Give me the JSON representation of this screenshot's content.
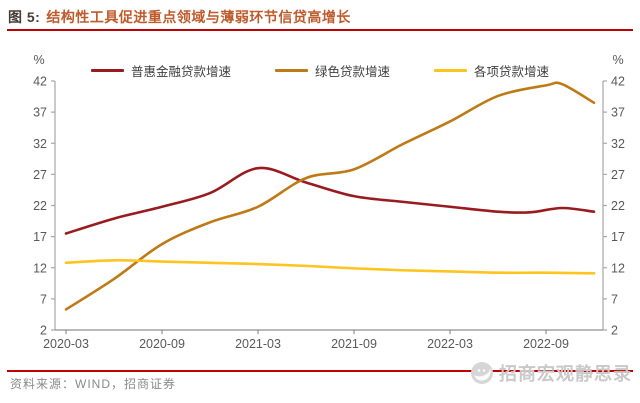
{
  "header": {
    "figure_label": "图 5:",
    "title": "结构性工具促进重点领域与薄弱环节信贷高增长"
  },
  "footer": {
    "source": "资料来源：WIND，招商证券",
    "watermark": "招商宏观静思录"
  },
  "colors": {
    "accent_rule": "#c00000",
    "title_text": "#be5b2d",
    "figure_label_text": "#473c33",
    "axis_line": "#a6a6a6",
    "axis_text": "#595959",
    "source_text": "#8a8a8a",
    "watermark_text": "#c9c9c9"
  },
  "chart_data": {
    "type": "line",
    "unit": "%",
    "dual_axis": true,
    "grid": false,
    "legend_position": "top",
    "ylim": [
      2,
      42
    ],
    "yticks": [
      2,
      7,
      12,
      17,
      22,
      27,
      32,
      37,
      42
    ],
    "x_tick_labels": [
      "2020-03",
      "2020-09",
      "2021-03",
      "2021-09",
      "2022-03",
      "2022-09"
    ],
    "x_tick_month_index": [
      0,
      6,
      12,
      18,
      24,
      30
    ],
    "x_month_span": 33,
    "points_encoding": "[months after 2020-03, percent]",
    "series": [
      {
        "name": "普惠金融贷款增速",
        "color": "#9a1b1f",
        "points": [
          [
            0,
            17.5
          ],
          [
            3,
            19.9
          ],
          [
            6,
            21.8
          ],
          [
            9,
            24.0
          ],
          [
            12,
            28.0
          ],
          [
            15,
            25.7
          ],
          [
            18,
            23.5
          ],
          [
            21,
            22.6
          ],
          [
            24,
            21.8
          ],
          [
            27,
            21.0
          ],
          [
            29,
            20.9
          ],
          [
            31,
            21.6
          ],
          [
            33,
            21.0
          ]
        ]
      },
      {
        "name": "绿色贷款增速",
        "color": "#be7a16",
        "points": [
          [
            0,
            5.3
          ],
          [
            3,
            10.2
          ],
          [
            6,
            15.8
          ],
          [
            9,
            19.3
          ],
          [
            12,
            21.8
          ],
          [
            15,
            26.4
          ],
          [
            18,
            27.8
          ],
          [
            21,
            31.8
          ],
          [
            24,
            35.5
          ],
          [
            27,
            39.6
          ],
          [
            30,
            41.3
          ],
          [
            31,
            41.5
          ],
          [
            33,
            38.5
          ]
        ]
      },
      {
        "name": "各项贷款增速",
        "color": "#ffc41e",
        "points": [
          [
            0,
            12.8
          ],
          [
            3,
            13.2
          ],
          [
            6,
            13.0
          ],
          [
            9,
            12.8
          ],
          [
            12,
            12.6
          ],
          [
            15,
            12.3
          ],
          [
            18,
            11.9
          ],
          [
            21,
            11.6
          ],
          [
            24,
            11.4
          ],
          [
            27,
            11.2
          ],
          [
            30,
            11.2
          ],
          [
            33,
            11.1
          ]
        ]
      }
    ]
  }
}
